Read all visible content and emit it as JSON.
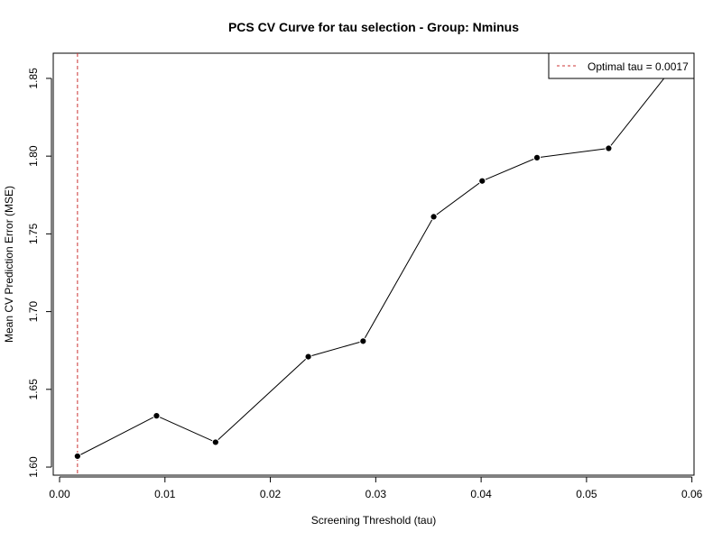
{
  "chart_data": {
    "type": "line",
    "title": "PCS CV Curve for tau selection - Group: Nminus",
    "xlabel": "Screening Threshold (tau)",
    "ylabel": "Mean CV Prediction Error (MSE)",
    "xlim": [
      -0.0006,
      0.0602
    ],
    "ylim": [
      1.5948,
      1.8662
    ],
    "x_ticks": [
      0.0,
      0.01,
      0.02,
      0.03,
      0.04,
      0.05,
      0.06
    ],
    "x_tick_labels": [
      "0.00",
      "0.01",
      "0.02",
      "0.03",
      "0.04",
      "0.05",
      "0.06"
    ],
    "y_ticks": [
      1.6,
      1.65,
      1.7,
      1.75,
      1.8,
      1.85
    ],
    "y_tick_labels": [
      "1.60",
      "1.65",
      "1.70",
      "1.75",
      "1.80",
      "1.85"
    ],
    "grid": false,
    "series": [
      {
        "x": [
          0.0017,
          0.0092,
          0.0148,
          0.0236,
          0.0288,
          0.0355,
          0.0401,
          0.0453,
          0.0521,
          0.0591
        ],
        "y": [
          1.607,
          1.633,
          1.616,
          1.671,
          1.681,
          1.761,
          1.784,
          1.799,
          1.805,
          1.865
        ],
        "color": "#000000",
        "marker": "circle"
      }
    ],
    "reference_line": {
      "orientation": "vertical",
      "x": 0.0017,
      "color": "#cc3333",
      "style": "dashed"
    },
    "legend": {
      "position": "top-right",
      "entries": [
        {
          "label": "Optimal tau = 0.0017",
          "color": "#cc3333",
          "style": "dashed"
        }
      ]
    }
  }
}
